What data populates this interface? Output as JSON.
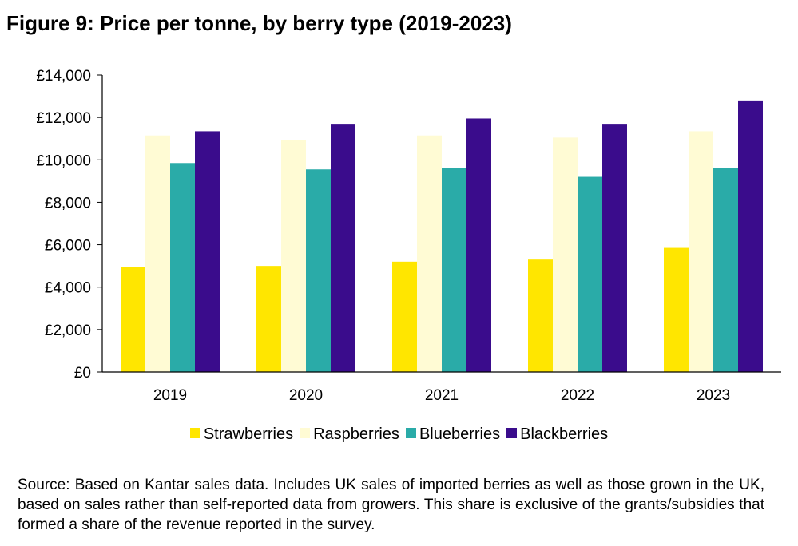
{
  "title": "Figure 9: Price per tonne, by berry type (2019-2023)",
  "colors": {
    "Strawberries": "#FFE600",
    "Raspberries": "#FFFBD4",
    "Blueberries": "#2AABA8",
    "Blackberries": "#3A0C8C"
  },
  "chart_data": {
    "type": "bar",
    "categories": [
      "2019",
      "2020",
      "2021",
      "2022",
      "2023"
    ],
    "series": [
      {
        "name": "Strawberries",
        "values": [
          4950,
          5000,
          5200,
          5300,
          5850
        ]
      },
      {
        "name": "Raspberries",
        "values": [
          11150,
          10950,
          11150,
          11050,
          11350
        ]
      },
      {
        "name": "Blueberries",
        "values": [
          9850,
          9550,
          9600,
          9200,
          9600
        ]
      },
      {
        "name": "Blackberries",
        "values": [
          11350,
          11700,
          11950,
          11700,
          12800
        ]
      }
    ],
    "ylim": [
      0,
      14000
    ],
    "yticks": [
      0,
      2000,
      4000,
      6000,
      8000,
      10000,
      12000,
      14000
    ],
    "ytick_labels": [
      "£0",
      "£2,000",
      "£4,000",
      "£6,000",
      "£8,000",
      "£10,000",
      "£12,000",
      "£14,000"
    ],
    "grid": false,
    "legend_position": "bottom"
  },
  "source_text": "Source: Based on Kantar sales data. Includes UK sales of imported berries as well as those grown in the UK, based on sales rather than self-reported data from growers. This share is exclusive of the grants/subsidies that formed a share of the revenue reported in the survey."
}
